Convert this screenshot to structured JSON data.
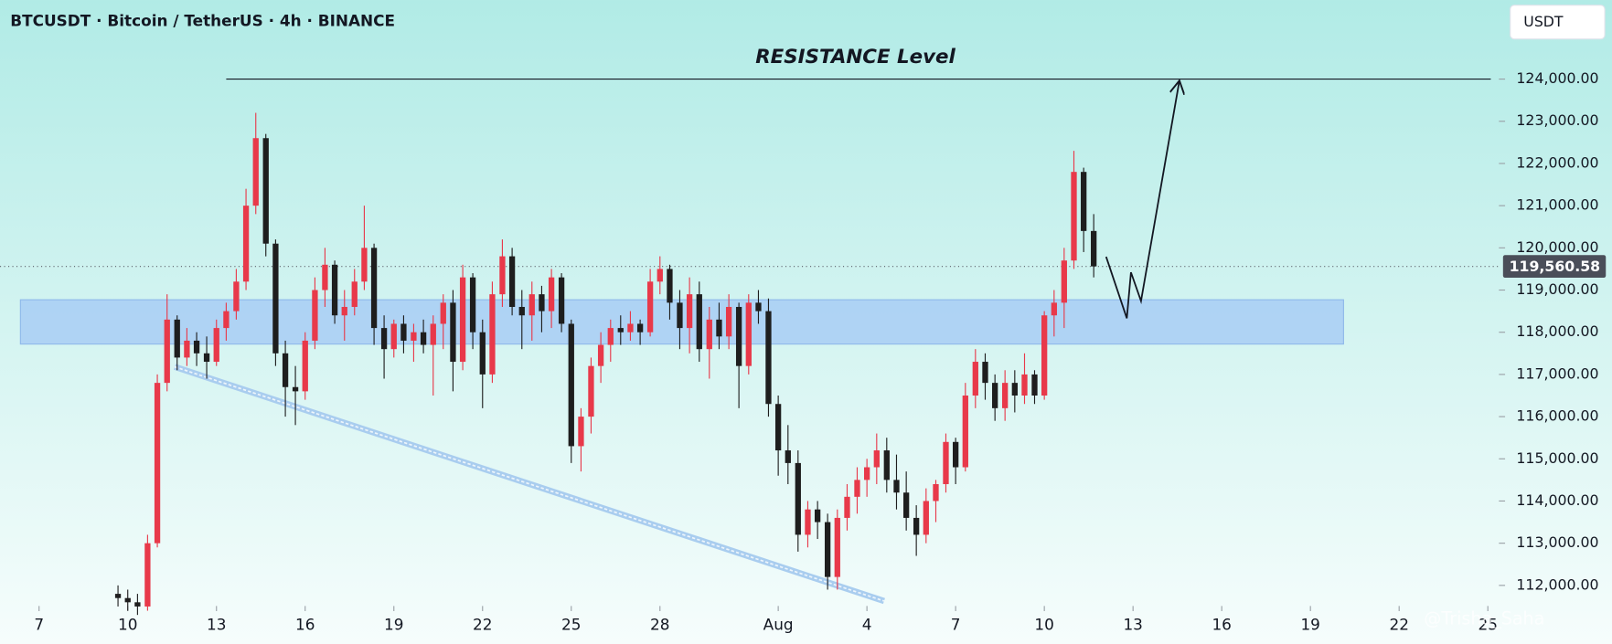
{
  "chart_data": {
    "type": "candlestick",
    "title": "BTCUSDT · Bitcoin / TetherUS · 4h · BINANCE",
    "currency": "USDT",
    "watermark": "@Trisha_Saha",
    "up_color": "#e8394a",
    "down_color": "#1e1e1e",
    "xlim": [
      5.679,
      56.305
    ],
    "ylim": [
      111512,
      125874
    ],
    "xticks": [
      7,
      10,
      13,
      16,
      19,
      22,
      25,
      28,
      {
        "value": 32,
        "label": "Aug"
      },
      {
        "value": 35,
        "label": "4"
      },
      {
        "value": 38,
        "label": "7"
      },
      {
        "value": 41,
        "label": "10"
      },
      {
        "value": 44,
        "label": "13"
      },
      {
        "value": 47,
        "label": "16"
      },
      {
        "value": 50,
        "label": "19"
      },
      {
        "value": 53,
        "label": "22"
      },
      {
        "value": 56,
        "label": "25"
      }
    ],
    "yticks": [
      {
        "value": 112000,
        "label": "112,000.00"
      },
      {
        "value": 113000,
        "label": "113,000.00"
      },
      {
        "value": 114000,
        "label": "114,000.00"
      },
      {
        "value": 115000,
        "label": "115,000.00"
      },
      {
        "value": 116000,
        "label": "116,000.00"
      },
      {
        "value": 117000,
        "label": "117,000.00"
      },
      {
        "value": 118000,
        "label": "118,000.00"
      },
      {
        "value": 119000,
        "label": "119,000.00"
      },
      {
        "value": 120000,
        "label": "120,000.00"
      },
      {
        "value": 121000,
        "label": "121,000.00"
      },
      {
        "value": 122000,
        "label": "122,000.00"
      },
      {
        "value": 123000,
        "label": "123,000.00"
      },
      {
        "value": 124000,
        "label": "124,000.00"
      }
    ],
    "last_price": {
      "value": 119560.58,
      "label": "119,560.58"
    },
    "candles": {
      "x": [
        9.67,
        10,
        10.33,
        10.67,
        11,
        11.33,
        11.67,
        12,
        12.33,
        12.67,
        13,
        13.33,
        13.67,
        14,
        14.33,
        14.67,
        15,
        15.33,
        15.67,
        16,
        16.33,
        16.67,
        17,
        17.33,
        17.67,
        18,
        18.33,
        18.67,
        19,
        19.33,
        19.67,
        20,
        20.33,
        20.67,
        21,
        21.33,
        21.67,
        22,
        22.33,
        22.67,
        23,
        23.33,
        23.67,
        24,
        24.33,
        24.67,
        25,
        25.33,
        25.67,
        26,
        26.33,
        26.67,
        27,
        27.33,
        27.67,
        28,
        28.33,
        28.67,
        29,
        29.33,
        29.67,
        30,
        30.33,
        30.67,
        31,
        31.33,
        31.67,
        32,
        32.33,
        32.67,
        33,
        33.33,
        33.67,
        34,
        34.33,
        34.67,
        35,
        35.33,
        35.67,
        36,
        36.33,
        36.67,
        37,
        37.33,
        37.67,
        38,
        38.33,
        38.67,
        39,
        39.33,
        39.67,
        40,
        40.33,
        40.67,
        41,
        41.33,
        41.67,
        42,
        42.33,
        42.67
      ],
      "open": [
        111800,
        111700,
        111600,
        111500,
        113000,
        116800,
        118300,
        117400,
        117800,
        117500,
        117300,
        118100,
        118500,
        119200,
        121000,
        122600,
        120100,
        117500,
        116700,
        116600,
        117800,
        119000,
        119600,
        118400,
        118600,
        119200,
        120000,
        118100,
        117600,
        118200,
        117800,
        118000,
        117700,
        118200,
        118700,
        117300,
        119300,
        118000,
        117000,
        118900,
        119800,
        118600,
        118400,
        118900,
        118500,
        119300,
        118200,
        115300,
        116000,
        117200,
        117700,
        118100,
        118000,
        118200,
        118000,
        119200,
        119500,
        118700,
        118100,
        118900,
        117600,
        118300,
        117900,
        118600,
        117200,
        118700,
        118500,
        116300,
        115200,
        114900,
        113200,
        113800,
        113500,
        112200,
        113600,
        114100,
        114500,
        114800,
        115200,
        114500,
        114200,
        113600,
        113200,
        114000,
        114400,
        115400,
        114800,
        116500,
        117300,
        116800,
        116200,
        116800,
        116500,
        117000,
        116500,
        118400,
        118700,
        119700,
        121800,
        120400
      ],
      "high": [
        112000,
        111900,
        111800,
        113200,
        117000,
        118900,
        118400,
        118100,
        118000,
        117900,
        118300,
        118700,
        119500,
        121400,
        123200,
        122700,
        120200,
        117800,
        117200,
        118000,
        119300,
        120000,
        119700,
        119000,
        119500,
        121000,
        120100,
        118400,
        118300,
        118400,
        118200,
        118300,
        118400,
        118900,
        119000,
        119600,
        119400,
        118300,
        119200,
        120200,
        120000,
        119000,
        119200,
        119100,
        119500,
        119400,
        118300,
        116200,
        117400,
        118000,
        118300,
        118400,
        118500,
        118300,
        119500,
        119800,
        119600,
        119000,
        119300,
        119200,
        118600,
        118700,
        118900,
        118700,
        118900,
        119000,
        118800,
        116500,
        115800,
        115200,
        114000,
        114000,
        113700,
        113800,
        114400,
        114800,
        115000,
        115600,
        115500,
        115100,
        114700,
        113900,
        114300,
        114500,
        115600,
        115500,
        116800,
        117600,
        117500,
        117000,
        117100,
        117100,
        117500,
        117100,
        118500,
        119000,
        120000,
        122300,
        121900,
        120800
      ],
      "low": [
        111500,
        111400,
        111300,
        111400,
        112900,
        116600,
        117100,
        117200,
        117200,
        116900,
        117200,
        117800,
        118300,
        119000,
        120800,
        119800,
        117200,
        116000,
        115800,
        116400,
        117600,
        118600,
        118200,
        117800,
        118400,
        119000,
        117700,
        116900,
        117400,
        117500,
        117300,
        117500,
        116500,
        117600,
        116600,
        117100,
        117600,
        116200,
        116800,
        118600,
        118400,
        117600,
        117800,
        118000,
        118100,
        118000,
        114900,
        114700,
        115600,
        116800,
        117300,
        117700,
        117800,
        117700,
        117900,
        118900,
        118300,
        117600,
        117500,
        117300,
        116900,
        117600,
        117600,
        116200,
        117000,
        118200,
        116000,
        114600,
        114400,
        112800,
        112900,
        113100,
        111900,
        111900,
        113300,
        113700,
        114100,
        114400,
        114200,
        113800,
        113300,
        112700,
        113000,
        113500,
        114200,
        114400,
        114700,
        116200,
        116400,
        115900,
        115900,
        116100,
        116300,
        116300,
        116400,
        117900,
        118100,
        119500,
        119900,
        119300
      ],
      "close": [
        111700,
        111600,
        111500,
        113000,
        116800,
        118300,
        117400,
        117800,
        117500,
        117300,
        118100,
        118500,
        119200,
        121000,
        122600,
        120100,
        117500,
        116700,
        116600,
        117800,
        119000,
        119600,
        118400,
        118600,
        119200,
        120000,
        118100,
        117600,
        118200,
        117800,
        118000,
        117700,
        118200,
        118700,
        117300,
        119300,
        118000,
        117000,
        118900,
        119800,
        118600,
        118400,
        118900,
        118500,
        119300,
        118200,
        115300,
        116000,
        117200,
        117700,
        118100,
        118000,
        118200,
        118000,
        119200,
        119500,
        118700,
        118100,
        118900,
        117600,
        118300,
        117900,
        118600,
        117200,
        118700,
        118500,
        116300,
        115200,
        114900,
        113200,
        113800,
        113500,
        112200,
        113600,
        114100,
        114500,
        114800,
        115200,
        114500,
        114200,
        113600,
        113200,
        114000,
        114400,
        115400,
        114800,
        116500,
        117300,
        116800,
        116200,
        116800,
        116500,
        117000,
        116500,
        118400,
        118700,
        119700,
        121800,
        120400,
        119560.58
      ]
    },
    "zone": {
      "color": "#a8cdf4",
      "x": [
        6.37,
        51.12
      ],
      "y": [
        117720,
        118770
      ]
    },
    "resistance": {
      "label": "RESISTANCE Level",
      "value": 124000,
      "x": [
        13.33,
        56.1
      ]
    },
    "trendline": {
      "color": "#a9cdef",
      "x": [
        11.59,
        35.58
      ],
      "y": [
        117180,
        111630
      ]
    },
    "projection": {
      "x": [
        43.09,
        43.79,
        43.93,
        44.27,
        45.56
      ],
      "y": [
        119790,
        118330,
        119420,
        118740,
        123930
      ]
    }
  }
}
